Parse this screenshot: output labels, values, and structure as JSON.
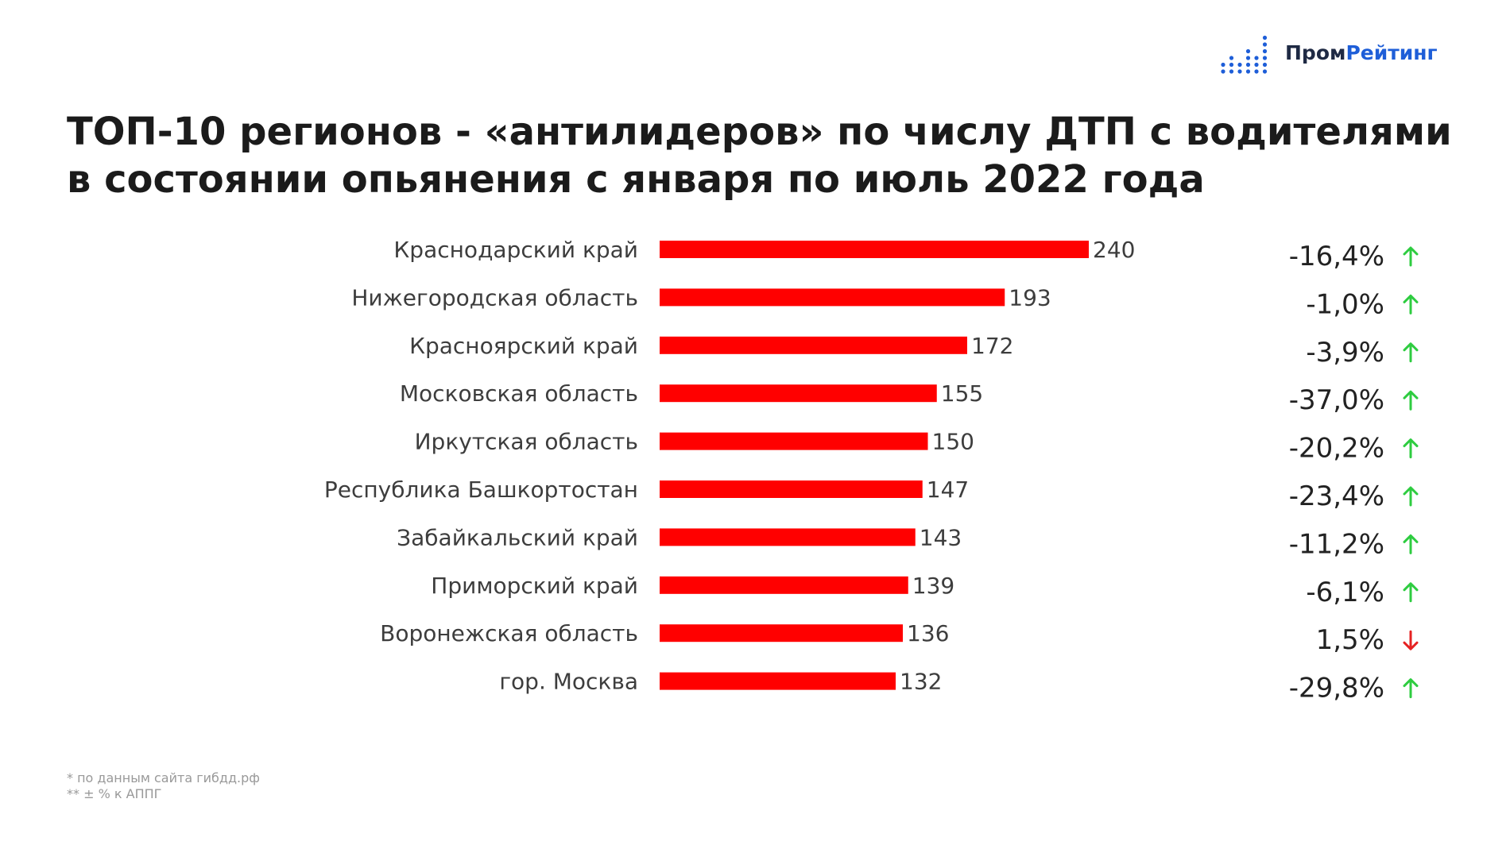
{
  "logo": {
    "part1": "Пром",
    "part2": "Рейтинг",
    "icon": "dot-matrix-bars-icon",
    "colors": {
      "dark": "#1f2a44",
      "accent": "#1e5ed8"
    }
  },
  "title": {
    "line1": "ТОП-10 регионов - «антилидеров» по числу ДТП с водителями",
    "line2": "в состоянии опьянения с января по июль 2022 года"
  },
  "chart_data": {
    "type": "bar",
    "orientation": "horizontal",
    "categories": [
      "Краснодарский край",
      "Нижегородская область",
      "Красноярский край",
      "Московская область",
      "Иркутская область",
      "Республика Башкортостан",
      "Забайкальский край",
      "Приморский край",
      "Воронежская область",
      "гор. Москва"
    ],
    "values": [
      240,
      193,
      172,
      155,
      150,
      147,
      143,
      139,
      136,
      132
    ],
    "change_labels": [
      "-16,4%",
      "-1,0%",
      "-3,9%",
      "-37,0%",
      "-20,2%",
      "-23,4%",
      "-11,2%",
      "-6,1%",
      "1,5%",
      "-29,8%"
    ],
    "change_direction": [
      "up",
      "up",
      "up",
      "up",
      "up",
      "up",
      "up",
      "up",
      "down",
      "up"
    ],
    "bar_color": "#ff0000",
    "arrow_colors": {
      "up": "#2ecc40",
      "down": "#e52222"
    },
    "grid": false,
    "legend": "none"
  },
  "footnotes": [
    "* по данным сайта гибдд.рф",
    "** ± % к АППГ"
  ]
}
